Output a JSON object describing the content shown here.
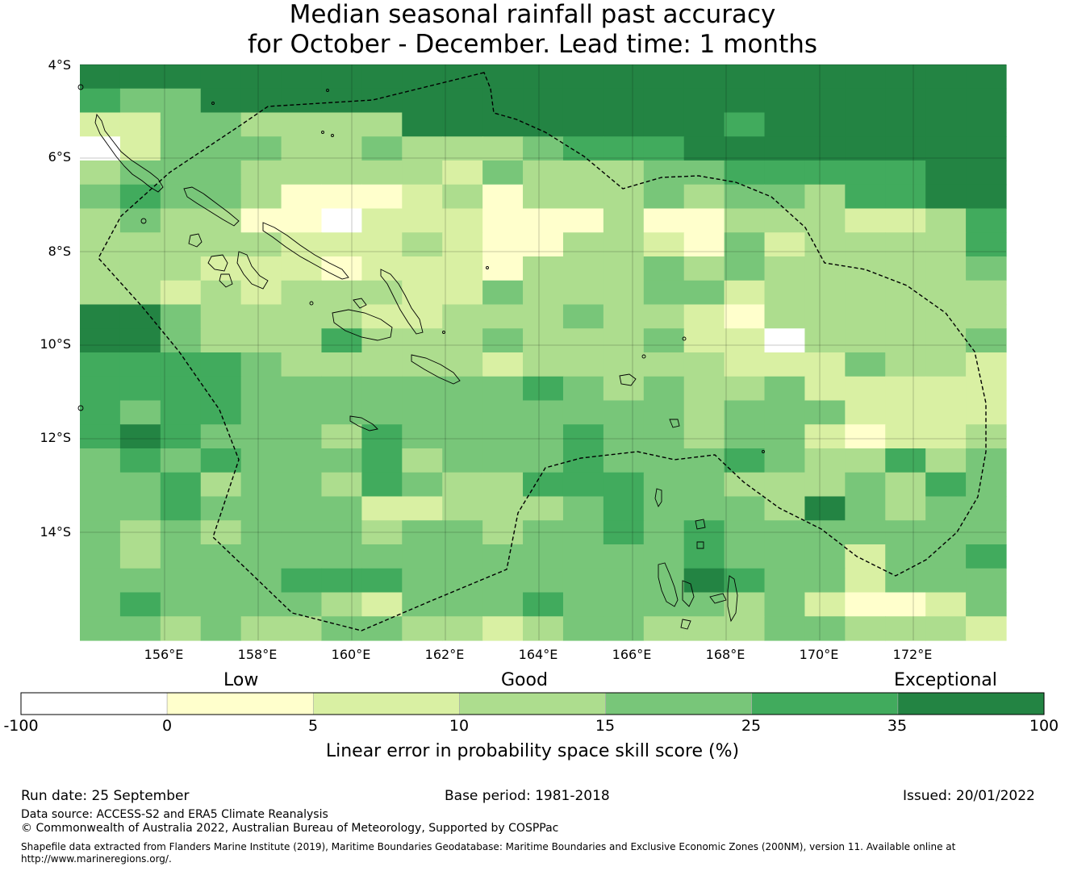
{
  "title": {
    "line1": "Median seasonal rainfall past accuracy",
    "line2": "for October - December. Lead time: 1 months"
  },
  "map": {
    "latitude_labels": [
      "4°S",
      "6°S",
      "8°S",
      "10°S",
      "12°S",
      "14°S"
    ],
    "longitude_labels": [
      "156°E",
      "158°E",
      "160°E",
      "162°E",
      "164°E",
      "166°E",
      "168°E",
      "170°E",
      "172°E"
    ],
    "skill_grid": [
      "66666666666666666666666",
      "54466666666666666666666",
      "22443333666666665666666",
      "02444334333455566666666",
      "34443333324333445555566",
      "45443111231333434435566",
      "34331102221113113332235",
      "33333222321133214233335",
      "33322212221333434333334",
      "33232333224333442333333",
      "66433332233343321333333",
      "66433353334333422033334",
      "55554333332333332224332",
      "55554444444543433422222",
      "54554444444444434442222",
      "56544435444454434421223",
      "45454445344454445433534",
      "44534435433555443334354",
      "44544442233345444364344",
      "43434443443445454444444",
      "43444444444444454442445",
      "44444555444444465442444",
      "45444432444544443421124",
      "44343344332344333443332"
    ],
    "colors": [
      "#ffffff",
      "#ffffcc",
      "#d9f0a3",
      "#addd8e",
      "#78c679",
      "#41ab5d",
      "#238443"
    ]
  },
  "colorbar": {
    "categories": [
      "Low",
      "Good",
      "Exceptional"
    ],
    "ticks": [
      "-100",
      "0",
      "5",
      "10",
      "15",
      "25",
      "35",
      "100"
    ],
    "label": "Linear error in probability space skill score (%)"
  },
  "footer": {
    "run_date": "Run date: 25 September",
    "base_period": "Base period: 1981-2018",
    "issued": "Issued: 20/01/2022",
    "data_source": "Data source: ACCESS-S2 and ERA5 Climate Reanalysis",
    "copyright": "© Commonwealth of Australia 2022, Australian Bureau of Meteorology, Supported by COSPPac",
    "shapefile_line1": "Shapefile data extracted from Flanders Marine Institute (2019), Maritime Boundaries Geodatabase: Maritime Boundaries and Exclusive Economic Zones (200NM), version 11. Available online at",
    "shapefile_line2": "http://www.marineregions.org/."
  }
}
